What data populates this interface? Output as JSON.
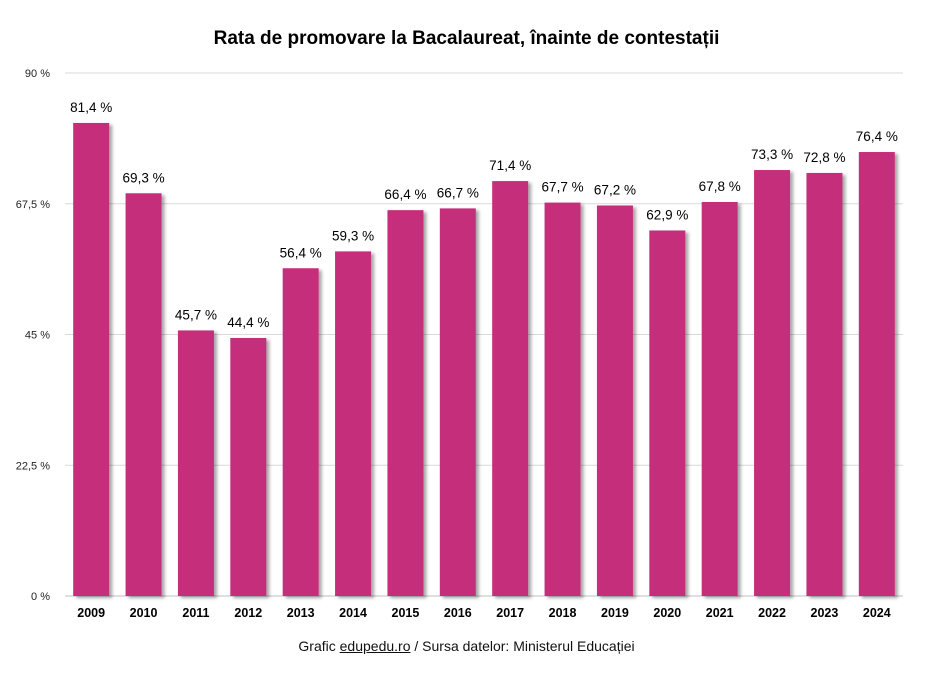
{
  "chart_data": {
    "type": "bar",
    "title": "Rata de promovare la Bacalaureat, înainte de contestații",
    "xlabel": "",
    "ylabel": "",
    "ylim": [
      0,
      90
    ],
    "yticks": [
      0,
      22.5,
      45,
      67.5,
      90
    ],
    "ytick_labels": [
      "0 %",
      "22,5 %",
      "45 %",
      "67,5 %",
      "90 %"
    ],
    "grid": true,
    "bar_color": "#C42E7A",
    "categories": [
      "2009",
      "2010",
      "2011",
      "2012",
      "2013",
      "2014",
      "2015",
      "2016",
      "2017",
      "2018",
      "2019",
      "2020",
      "2021",
      "2022",
      "2023",
      "2024"
    ],
    "values": [
      81.4,
      69.3,
      45.7,
      44.4,
      56.4,
      59.3,
      66.4,
      66.7,
      71.4,
      67.7,
      67.2,
      62.9,
      67.8,
      73.3,
      72.8,
      76.4
    ],
    "data_labels": [
      "81,4 %",
      "69,3 %",
      "45,7 %",
      "44,4 %",
      "56,4 %",
      "59,3 %",
      "66,4 %",
      "66,7 %",
      "71,4 %",
      "67,7 %",
      "67,2 %",
      "62,9 %",
      "67,8 %",
      "73,3 %",
      "72,8 %",
      "76,4 %"
    ]
  },
  "footer": {
    "prefix": "Grafic ",
    "link": "edupedu.ro",
    "suffix": " / Sursa datelor: Ministerul Educației"
  }
}
